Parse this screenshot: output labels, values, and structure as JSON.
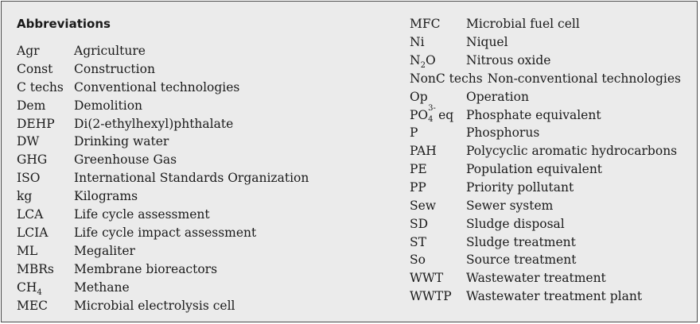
{
  "heading": "Abbreviations",
  "left_column": [
    {
      "abbr": "Agr",
      "definition": "Agriculture"
    },
    {
      "abbr": "Const",
      "definition": "Construction"
    },
    {
      "abbr": "C techs",
      "definition": "Conventional technologies"
    },
    {
      "abbr": "Dem",
      "definition": "Demolition"
    },
    {
      "abbr": "DEHP",
      "definition": "Di(2-ethylhexyl)phthalate"
    },
    {
      "abbr": "DW",
      "definition": "Drinking water"
    },
    {
      "abbr": "GHG",
      "definition": "Greenhouse Gas"
    },
    {
      "abbr": "ISO",
      "definition": "International Standards Organization"
    },
    {
      "abbr": "kg",
      "definition": "Kilograms"
    },
    {
      "abbr": "LCA",
      "definition": "Life cycle assessment"
    },
    {
      "abbr": "LCIA",
      "definition": "Life cycle impact assessment"
    },
    {
      "abbr": "ML",
      "definition": "Megaliter"
    },
    {
      "abbr": "MBRs",
      "definition": "Membrane bioreactors"
    },
    {
      "abbr_main": "CH",
      "abbr_sub": "4",
      "definition": "Methane"
    },
    {
      "abbr": "MEC",
      "definition": "Microbial electrolysis cell"
    }
  ],
  "right_column": [
    {
      "abbr": "MFC",
      "definition": "Microbial fuel cell"
    },
    {
      "abbr": "Ni",
      "definition": "Niquel"
    },
    {
      "abbr_main": "N",
      "abbr_sub": "2",
      "abbr_tail": "O",
      "definition": "Nitrous oxide"
    },
    {
      "abbr": "NonC techs",
      "definition": "Non-conventional technologies"
    },
    {
      "abbr": "Op",
      "definition": "Operation"
    },
    {
      "abbr_main": "PO",
      "abbr_sup": "3-",
      "abbr_sub": "4",
      "abbr_tail": " eq",
      "definition": "Phosphate equivalent"
    },
    {
      "abbr": "P",
      "definition": "Phosphorus"
    },
    {
      "abbr": "PAH",
      "definition": "Polycyclic aromatic hydrocarbons"
    },
    {
      "abbr": "PE",
      "definition": "Population equivalent"
    },
    {
      "abbr": "PP",
      "definition": "Priority pollutant"
    },
    {
      "abbr": "Sew",
      "definition": "Sewer system"
    },
    {
      "abbr": "SD",
      "definition": "Sludge disposal"
    },
    {
      "abbr": "ST",
      "definition": "Sludge treatment"
    },
    {
      "abbr": "So",
      "definition": "Source treatment"
    },
    {
      "abbr": "WWT",
      "definition": "Wastewater treatment"
    },
    {
      "abbr": "WWTP",
      "definition": "Wastewater treatment plant"
    }
  ]
}
